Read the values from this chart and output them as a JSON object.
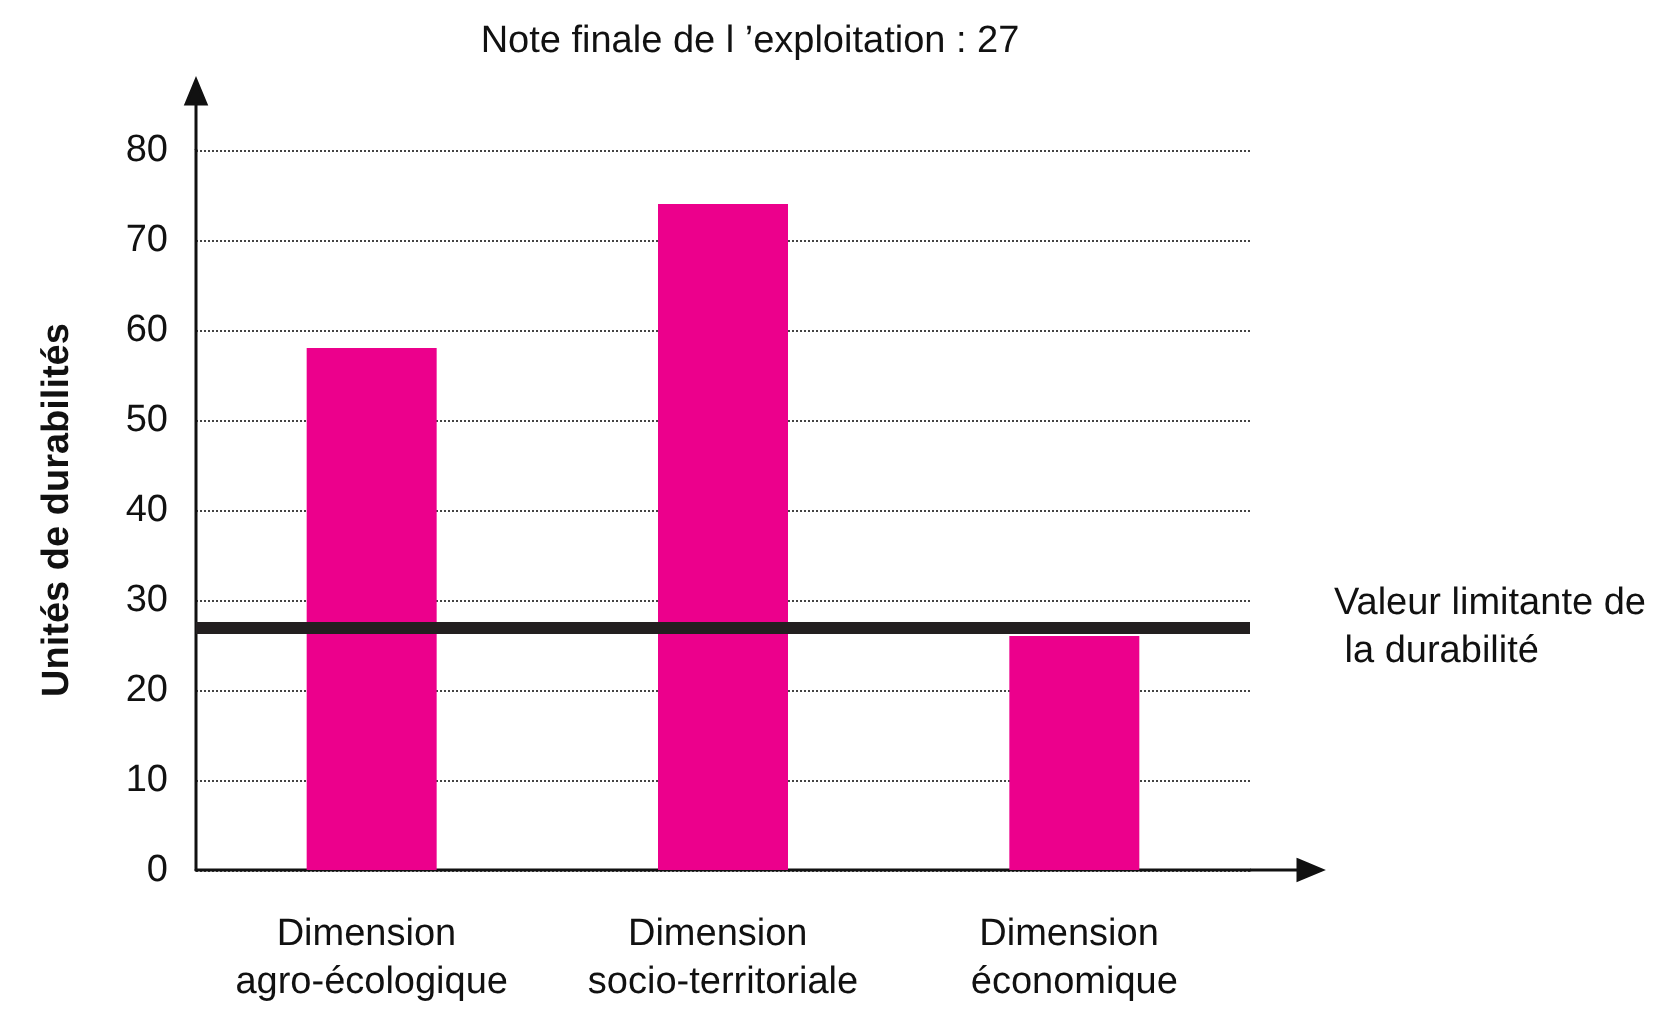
{
  "chart_data": {
    "type": "bar",
    "title": "Note finale de l ’exploitation : 27",
    "ylabel": "Unités de durabilités",
    "categories": [
      "Dimension agro-écologique",
      "Dimension socio-territoriale",
      "Dimension économique"
    ],
    "values": [
      58,
      74,
      26
    ],
    "color": "#ec008c",
    "ylim": [
      0,
      80
    ],
    "yticks": [
      0,
      10,
      20,
      30,
      40,
      50,
      60,
      70,
      80
    ],
    "grid": "y",
    "ref_lines": [
      {
        "axis": "y",
        "value": 27,
        "label": "Valeur limitante de la durabilité",
        "color": "#231f20",
        "line_style": "solid"
      }
    ]
  }
}
